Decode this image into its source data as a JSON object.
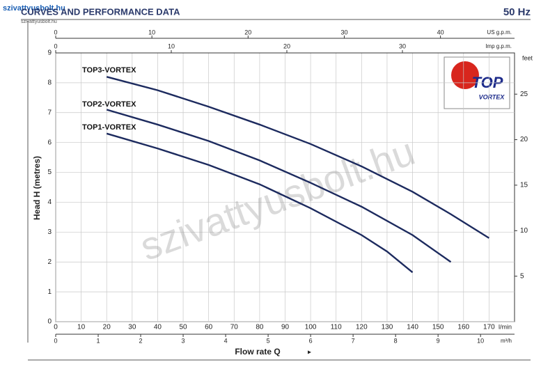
{
  "header": {
    "brand": "szivattyusbolt.hu",
    "url": "szivattyusbolt.hu"
  },
  "watermark": "szivattyusbolt.hu",
  "logo": {
    "text": "TOP",
    "subtext": "VORTEX"
  },
  "chart_data": {
    "type": "line",
    "title": "CURVES AND PERFORMANCE DATA",
    "subtitle": "50 Hz",
    "x_label": "Flow rate Q",
    "x_unit": "l/min",
    "y_label": "Head H (metres)",
    "xlim": [
      0,
      180
    ],
    "xticks": [
      0,
      10,
      20,
      30,
      40,
      50,
      60,
      70,
      80,
      90,
      100,
      110,
      120,
      130,
      140,
      150,
      160,
      170
    ],
    "ylim": [
      0,
      9
    ],
    "yticks": [
      0,
      1,
      2,
      3,
      4,
      5,
      6,
      7,
      8,
      9
    ],
    "y2_label": "feet",
    "y2lim": [
      0,
      29.53
    ],
    "y2ticks": [
      5,
      10,
      15,
      20,
      25
    ],
    "grid": true,
    "secondary_x_axes": [
      {
        "label": "m³/h",
        "lim": [
          0,
          10.8
        ],
        "ticks": [
          0,
          1,
          2,
          3,
          4,
          5,
          6,
          7,
          8,
          9,
          10
        ]
      },
      {
        "label": "US g.p.m.",
        "lim": [
          0,
          47.7
        ],
        "ticks": [
          0,
          10,
          20,
          30,
          40
        ]
      },
      {
        "label": "Imp g.p.m.",
        "lim": [
          0,
          39.7
        ],
        "ticks": [
          0,
          10,
          20,
          30
        ]
      }
    ],
    "series": [
      {
        "name": "TOP3-VORTEX",
        "color": "#1c2a5e",
        "x": [
          20,
          40,
          60,
          80,
          100,
          120,
          140,
          155,
          170
        ],
        "values": [
          8.2,
          7.75,
          7.2,
          6.6,
          5.95,
          5.2,
          4.35,
          3.6,
          2.8
        ]
      },
      {
        "name": "TOP2-VORTEX",
        "color": "#1c2a5e",
        "x": [
          20,
          40,
          60,
          80,
          100,
          120,
          140,
          155
        ],
        "values": [
          7.1,
          6.6,
          6.05,
          5.4,
          4.65,
          3.85,
          2.9,
          2.0
        ]
      },
      {
        "name": "TOP1-VORTEX",
        "color": "#1c2a5e",
        "x": [
          20,
          40,
          60,
          80,
          100,
          120,
          130,
          140
        ],
        "values": [
          6.3,
          5.8,
          5.25,
          4.6,
          3.8,
          2.9,
          2.35,
          1.65
        ]
      }
    ]
  }
}
